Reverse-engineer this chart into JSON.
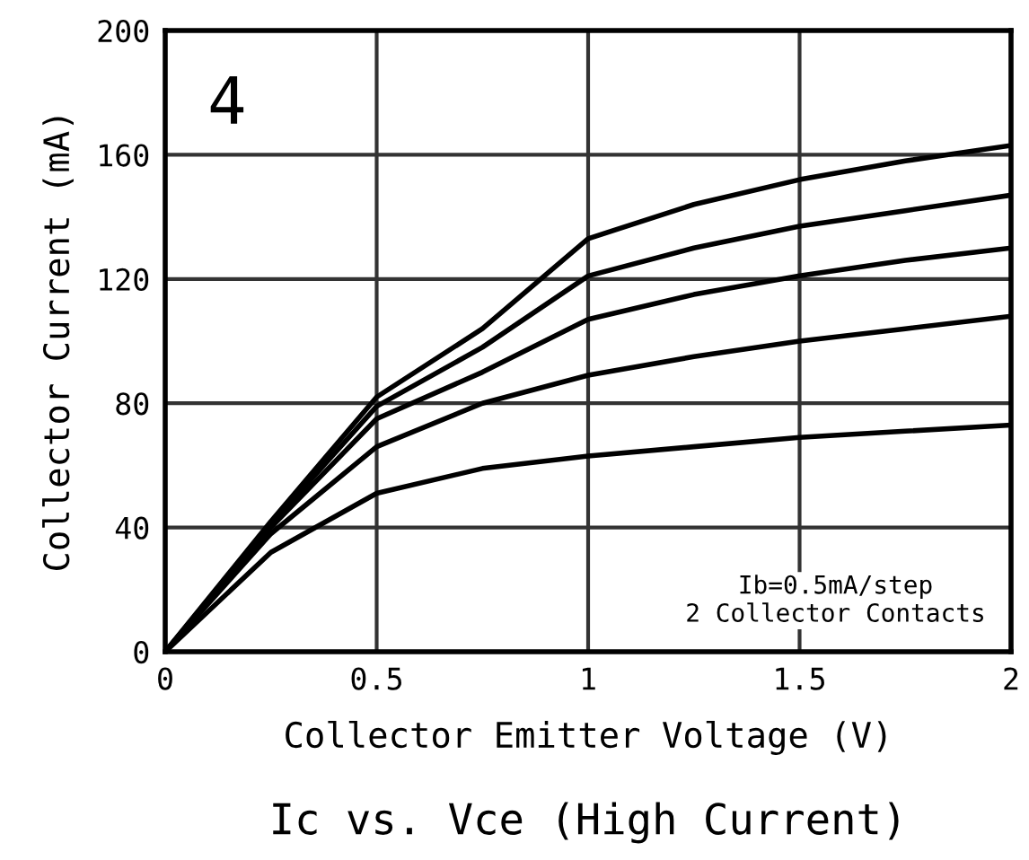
{
  "chart_data": {
    "type": "line",
    "title": "Ic vs. Vce (High Current)",
    "xlabel": "Collector Emitter Voltage (V)",
    "ylabel": "Collector Current (mA)",
    "x": [
      0,
      0.25,
      0.5,
      0.75,
      1,
      1.25,
      1.5,
      1.75,
      2
    ],
    "series": [
      {
        "color": "#000000",
        "values": [
          0,
          32,
          51,
          59,
          63,
          66,
          69,
          71,
          73
        ]
      },
      {
        "color": "#000000",
        "values": [
          0,
          38,
          66,
          80,
          89,
          95,
          100,
          104,
          108
        ]
      },
      {
        "color": "#000000",
        "values": [
          0,
          40,
          75,
          90,
          107,
          115,
          121,
          126,
          130
        ]
      },
      {
        "color": "#000000",
        "values": [
          0,
          41,
          79,
          98,
          121,
          130,
          137,
          142,
          147
        ]
      },
      {
        "color": "#000000",
        "values": [
          0,
          42,
          82,
          104,
          133,
          144,
          152,
          158,
          163
        ]
      }
    ],
    "xlim": [
      0,
      2
    ],
    "xticks": [
      0,
      0.5,
      1,
      1.5,
      2
    ],
    "ylim": [
      0,
      200
    ],
    "yticks": [
      0,
      40,
      80,
      120,
      160,
      200
    ],
    "grid": true,
    "legend": false,
    "marker": "none",
    "line_style": "solid",
    "annotations": [
      "4",
      "Ib=0.5mA/step\n2 Collector Contacts"
    ]
  }
}
